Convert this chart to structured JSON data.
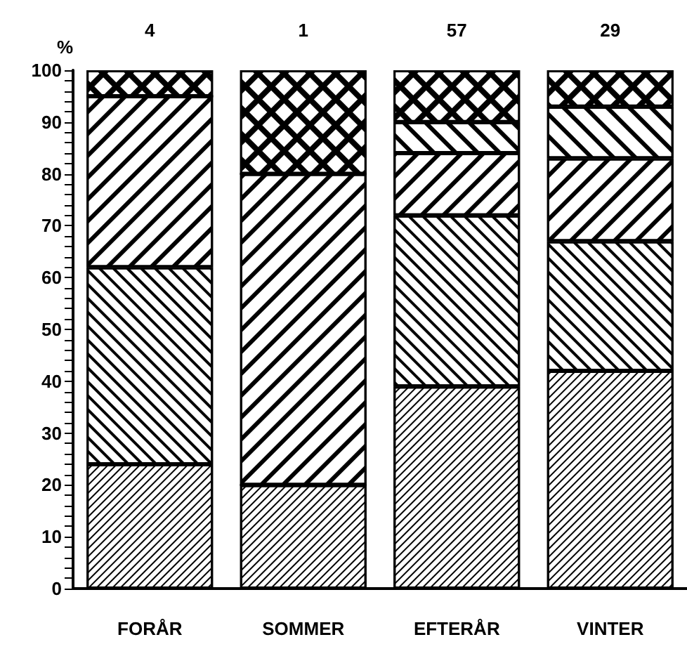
{
  "chart_data": {
    "type": "bar",
    "stacked": true,
    "ylabel": "%",
    "categories": [
      "FORÅR",
      "SOMMER",
      "EFTERÅR",
      "VINTER"
    ],
    "series": [
      {
        "color": "#ffffff",
        "values": [
          24,
          20,
          39,
          42
        ]
      },
      {
        "color": "#ffffff",
        "values": [
          38,
          0,
          33,
          25
        ]
      },
      {
        "color": "#ffffff",
        "values": [
          33,
          60,
          12,
          16
        ]
      },
      {
        "color": "#ffffff",
        "values": [
          0,
          0,
          6,
          10
        ]
      },
      {
        "color": "#000000",
        "values": [
          5,
          20,
          10,
          7
        ]
      }
    ],
    "annotations": [
      "4",
      "1",
      "57",
      "29"
    ],
    "ylim": [
      0,
      100
    ],
    "yticks": [
      0,
      10,
      20,
      30,
      40,
      50,
      60,
      70,
      80,
      90,
      100
    ],
    "grid": false
  }
}
